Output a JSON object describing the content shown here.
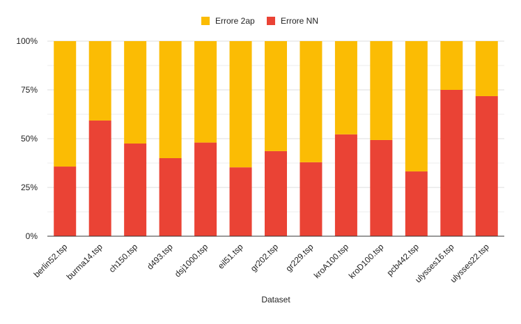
{
  "chart_data": {
    "type": "bar",
    "stacked": true,
    "normalized": true,
    "title": "",
    "xlabel": "Dataset",
    "ylabel": "",
    "ylim": [
      0,
      100
    ],
    "y_ticks": [
      "0%",
      "25%",
      "50%",
      "75%",
      "100%"
    ],
    "y_tick_values": [
      0,
      25,
      50,
      75,
      100
    ],
    "grid": true,
    "legend_position": "top",
    "categories": [
      "berlin52.tsp",
      "burma14.tsp",
      "ch150.tsp",
      "d493.tsp",
      "dsj1000.tsp",
      "eil51.tsp",
      "gr202.tsp",
      "gr229.tsp",
      "kroA100.tsp",
      "kroD100.tsp",
      "pcb442.tsp",
      "ulysses16.tsp",
      "ulysses22.tsp"
    ],
    "series": [
      {
        "name": "Errore NN",
        "color": "#ea4335",
        "values": [
          35.7,
          59.3,
          47.5,
          40.0,
          48.0,
          35.3,
          43.6,
          37.9,
          52.2,
          49.3,
          33.2,
          75.0,
          71.8
        ]
      },
      {
        "name": "Errore 2ap",
        "color": "#fbbc04",
        "values": [
          64.3,
          40.7,
          52.5,
          60.0,
          52.0,
          64.7,
          56.4,
          62.1,
          47.8,
          50.7,
          66.8,
          25.0,
          28.2
        ]
      }
    ],
    "legend_order": [
      "Errore 2ap",
      "Errore NN"
    ]
  }
}
